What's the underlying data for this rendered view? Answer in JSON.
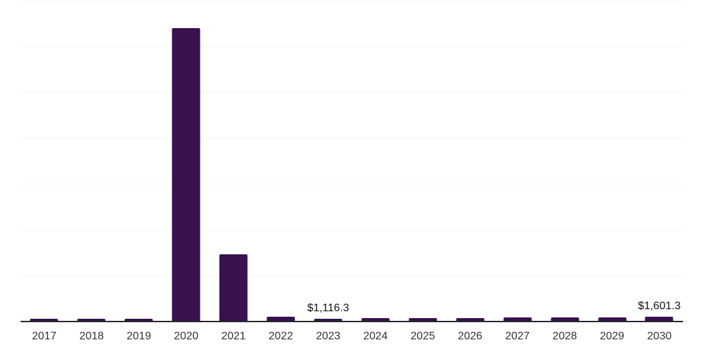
{
  "chart_data": {
    "type": "bar",
    "title": "",
    "xlabel": "",
    "ylabel": "",
    "categories": [
      "2017",
      "2018",
      "2019",
      "2020",
      "2021",
      "2022",
      "2023",
      "2024",
      "2025",
      "2026",
      "2027",
      "2028",
      "2029",
      "2030"
    ],
    "values": [
      1000,
      1000,
      1050,
      88000,
      20300,
      1580,
      1116.3,
      1180,
      1250,
      1320,
      1390,
      1460,
      1530,
      1601.3
    ],
    "value_labels": [
      "",
      "",
      "",
      "",
      "",
      "",
      "$1,116.3",
      "",
      "",
      "",
      "",
      "",
      "",
      "$1,601.3"
    ],
    "labeled_points": [
      {
        "category": "2023",
        "label": "$1,116.3",
        "value": 1116.3
      },
      {
        "category": "2030",
        "label": "$1,601.3",
        "value": 1601.3
      }
    ],
    "ylim": [
      0,
      96000
    ],
    "y_axis_labels_visible": false,
    "grid": "horizontal",
    "gridline_count": 7,
    "legend": "none"
  },
  "colors": {
    "background": "#ffffff",
    "bar": "#38114e",
    "gridline": "#f4f4f4",
    "axis_line": "#262626",
    "tick_label": "#333333",
    "data_label": "#111111"
  }
}
